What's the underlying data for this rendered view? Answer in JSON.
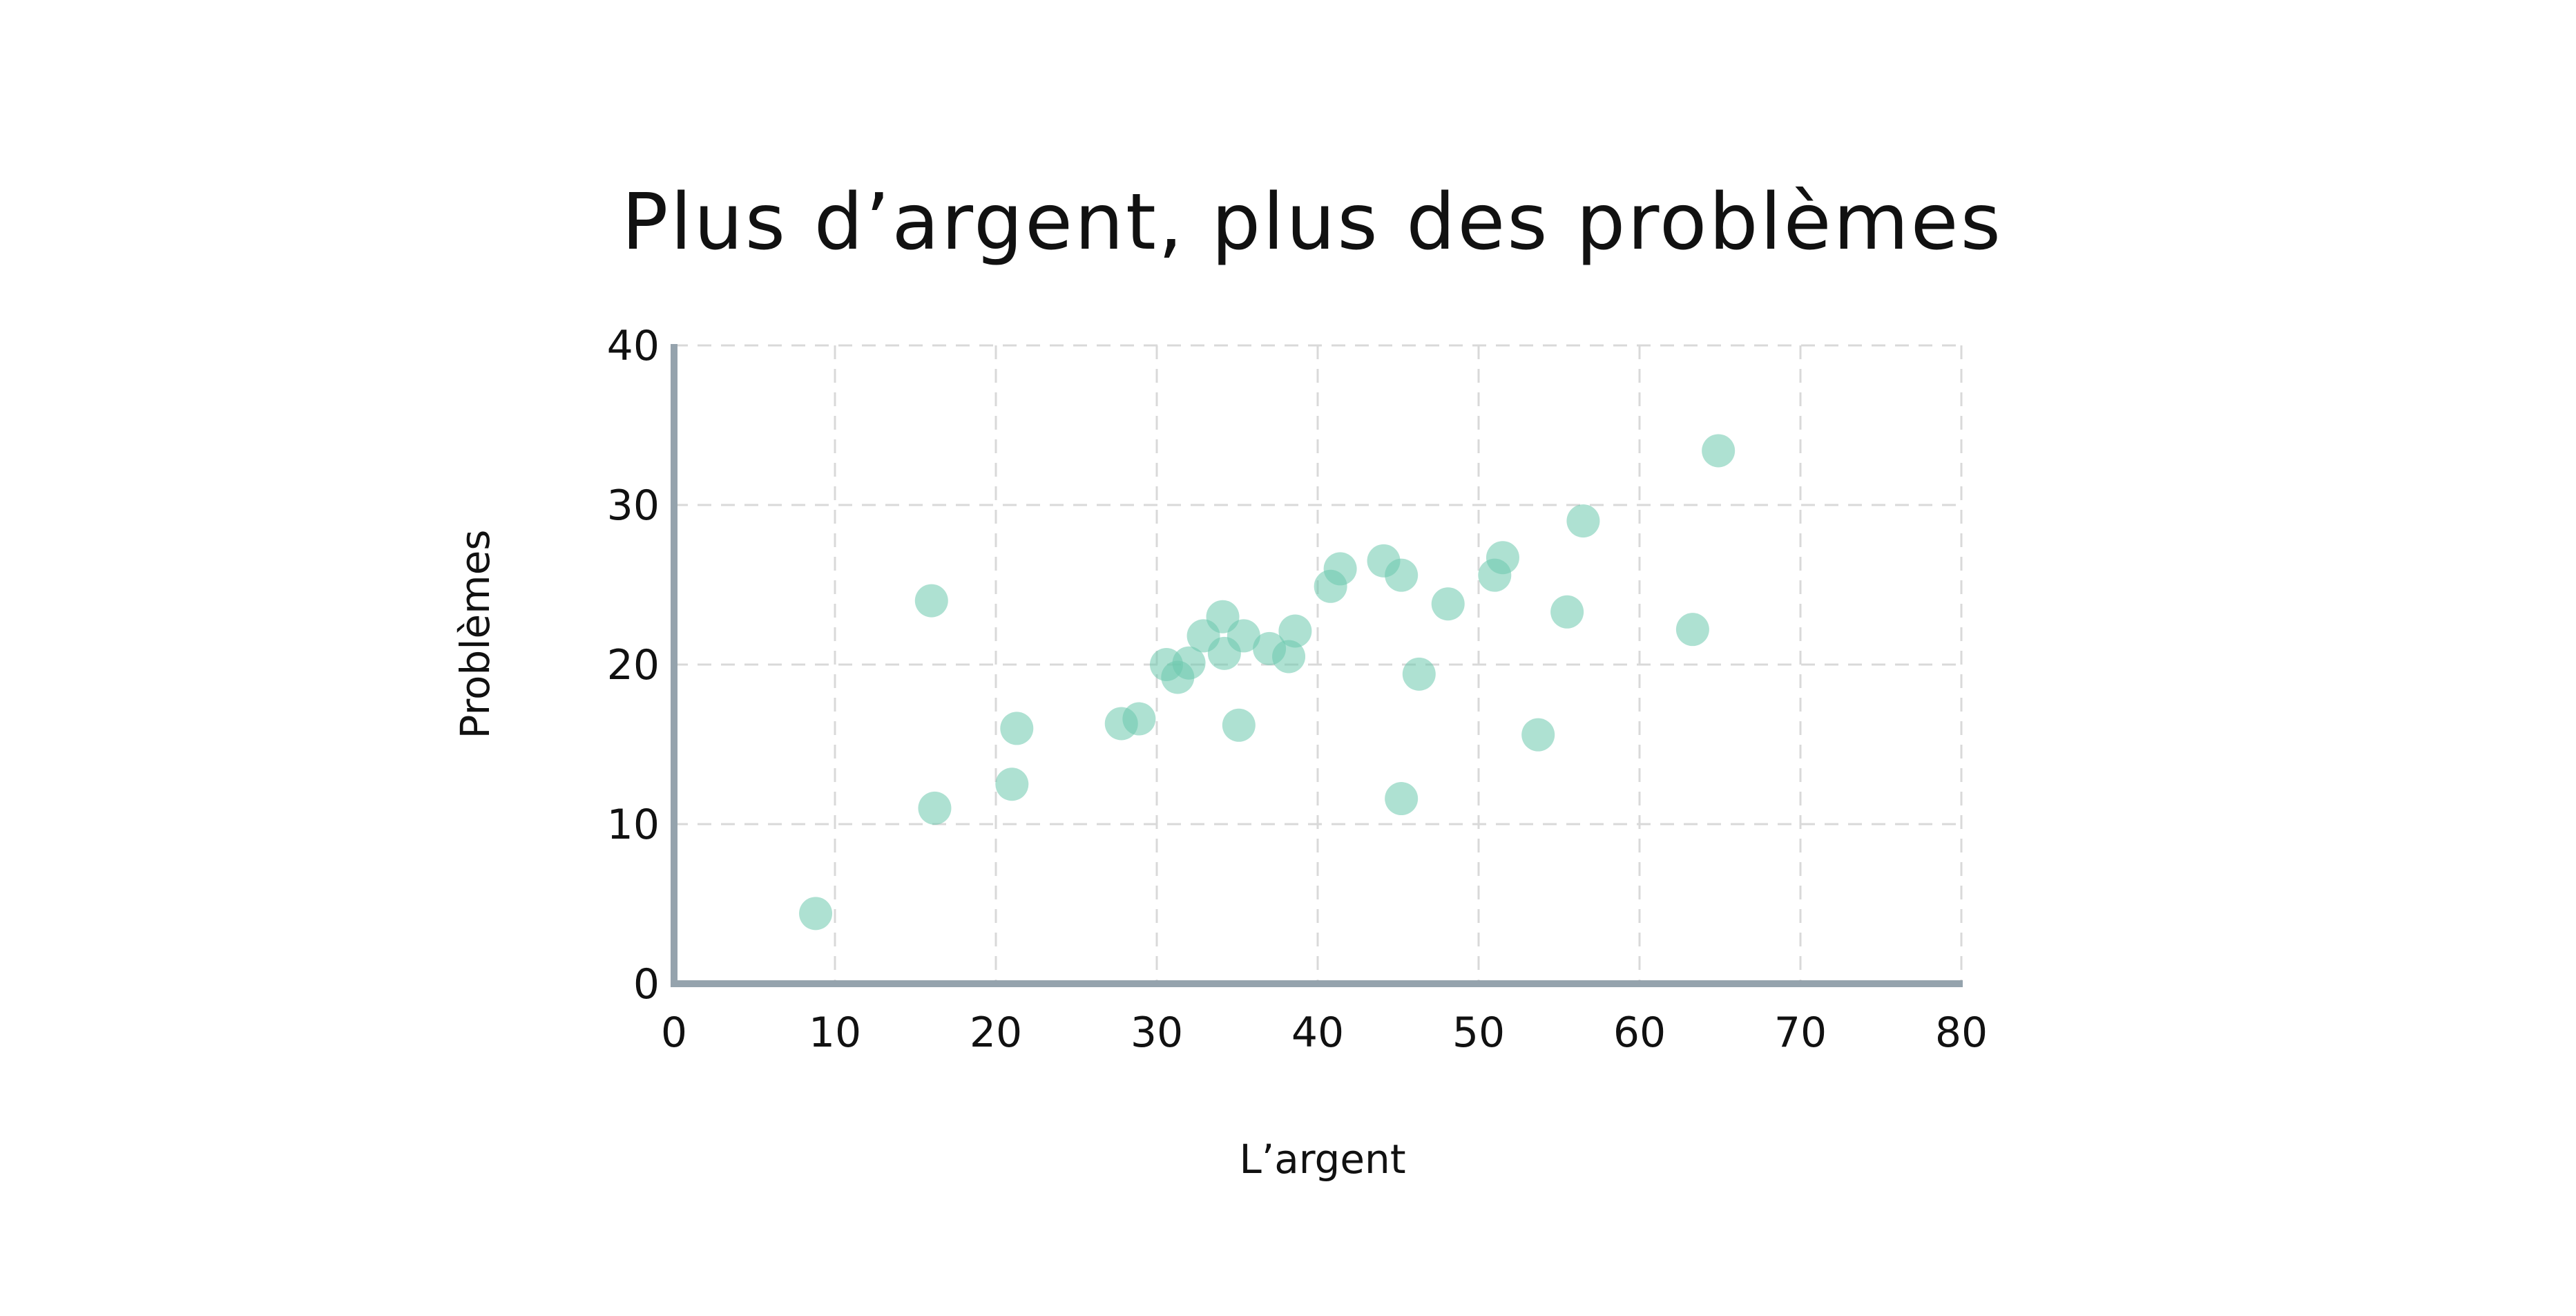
{
  "colors": {
    "background": "#ffffff",
    "point": "#6cc9ad",
    "axis": "#95a3ad",
    "grid": "#d9d9d9",
    "text": "#111111"
  },
  "chart_data": {
    "type": "scatter",
    "title": "Plus d’argent, plus des problèmes",
    "xlabel": "L’argent",
    "ylabel": "Problèmes",
    "xlim": [
      0,
      80
    ],
    "ylim": [
      0,
      40
    ],
    "xticks": [
      "0",
      "10",
      "20",
      "30",
      "40",
      "50",
      "60",
      "70",
      "80"
    ],
    "yticks": [
      "0",
      "10",
      "20",
      "30",
      "40"
    ],
    "grid": true,
    "legend": "none",
    "points": [
      {
        "x": 8.8,
        "y": 4.4
      },
      {
        "x": 16.0,
        "y": 24.0
      },
      {
        "x": 16.2,
        "y": 11.0
      },
      {
        "x": 21.0,
        "y": 12.5
      },
      {
        "x": 21.3,
        "y": 16.0
      },
      {
        "x": 27.8,
        "y": 16.3
      },
      {
        "x": 28.9,
        "y": 16.6
      },
      {
        "x": 30.6,
        "y": 20.0
      },
      {
        "x": 31.3,
        "y": 19.2
      },
      {
        "x": 32.0,
        "y": 20.1
      },
      {
        "x": 32.9,
        "y": 21.8
      },
      {
        "x": 34.1,
        "y": 23.0
      },
      {
        "x": 34.2,
        "y": 20.7
      },
      {
        "x": 35.1,
        "y": 16.2
      },
      {
        "x": 35.4,
        "y": 21.8
      },
      {
        "x": 37.0,
        "y": 21.0
      },
      {
        "x": 38.2,
        "y": 20.5
      },
      {
        "x": 38.6,
        "y": 22.1
      },
      {
        "x": 40.8,
        "y": 24.9
      },
      {
        "x": 41.4,
        "y": 26.0
      },
      {
        "x": 44.1,
        "y": 26.5
      },
      {
        "x": 45.2,
        "y": 25.6
      },
      {
        "x": 45.2,
        "y": 11.6
      },
      {
        "x": 46.3,
        "y": 19.4
      },
      {
        "x": 48.1,
        "y": 23.8
      },
      {
        "x": 51.0,
        "y": 25.6
      },
      {
        "x": 51.5,
        "y": 26.7
      },
      {
        "x": 53.7,
        "y": 15.6
      },
      {
        "x": 55.5,
        "y": 23.3
      },
      {
        "x": 56.5,
        "y": 29.0
      },
      {
        "x": 63.3,
        "y": 22.2
      },
      {
        "x": 64.9,
        "y": 33.4
      }
    ]
  }
}
